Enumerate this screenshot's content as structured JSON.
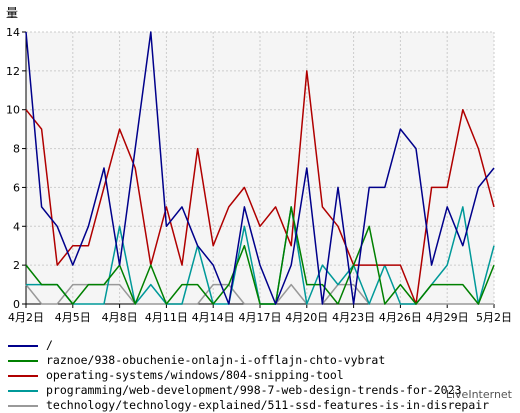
{
  "chart_data": {
    "type": "line",
    "ylabel": "量",
    "ylim": [
      0,
      14
    ],
    "yticks": [
      "0",
      "2",
      "4",
      "6",
      "8",
      "10",
      "12",
      "14"
    ],
    "x": [
      "4月2日",
      "4月3日",
      "4月4日",
      "4月5日",
      "4月6日",
      "4月7日",
      "4月8日",
      "4月9日",
      "4月10日",
      "4月11日",
      "4月12日",
      "4月13日",
      "4月14日",
      "4月15日",
      "4月16日",
      "4月17日",
      "4月18日",
      "4月19日",
      "4月20日",
      "4月21日",
      "4月22日",
      "4月23日",
      "4月24日",
      "4月25日",
      "4月26日",
      "4月27日",
      "4月28日",
      "4月29日",
      "4月30日",
      "5月1日",
      "5月2日"
    ],
    "xticks": [
      "4月2日",
      "4月5日",
      "4月8日",
      "4月11日",
      "4月14日",
      "4月17日",
      "4月20日",
      "4月23日",
      "4月26日",
      "4月29日",
      "5月2日"
    ],
    "grid": true,
    "legend_position": "bottom",
    "series": [
      {
        "name": "/",
        "color": "#00008b",
        "values": [
          14,
          5,
          4,
          2,
          4,
          7,
          2,
          8,
          14,
          4,
          5,
          3,
          2,
          0,
          5,
          2,
          0,
          2,
          7,
          0,
          6,
          0,
          6,
          6,
          9,
          8,
          2,
          5,
          3,
          6,
          7
        ]
      },
      {
        "name": "raznoe/938-obuchenie-onlajn-i-offlajn-chto-vybrat",
        "color": "#008000",
        "values": [
          2,
          1,
          1,
          0,
          1,
          1,
          2,
          0,
          2,
          0,
          1,
          1,
          0,
          1,
          3,
          0,
          0,
          5,
          1,
          1,
          0,
          2,
          4,
          0,
          1,
          0,
          1,
          1,
          1,
          0,
          2
        ]
      },
      {
        "name": "operating-systems/windows/804-snipping-tool",
        "color": "#b00000",
        "values": [
          10,
          9,
          2,
          3,
          3,
          6,
          9,
          7,
          2,
          5,
          2,
          8,
          3,
          5,
          6,
          4,
          5,
          3,
          12,
          5,
          4,
          2,
          2,
          2,
          2,
          0,
          6,
          6,
          10,
          8,
          5
        ]
      },
      {
        "name": "programming/web-development/998-7-web-design-trends-for-2023",
        "color": "#009999",
        "values": [
          1,
          1,
          1,
          0,
          0,
          0,
          4,
          0,
          1,
          0,
          0,
          3,
          0,
          0,
          4,
          0,
          0,
          5,
          0,
          2,
          1,
          2,
          0,
          2,
          0,
          0,
          1,
          2,
          5,
          0,
          3
        ]
      },
      {
        "name": "technology/technology-explained/511-ssd-features-is-in-disrepair",
        "color": "#999999",
        "values": [
          1,
          0,
          0,
          1,
          1,
          1,
          1,
          0,
          0,
          0,
          0,
          0,
          1,
          1,
          0,
          0,
          0,
          1,
          0,
          0,
          1,
          1,
          0,
          0,
          0,
          0,
          0,
          0,
          0,
          0,
          0
        ]
      }
    ]
  },
  "footer": {
    "brand": "LiveInternet"
  }
}
